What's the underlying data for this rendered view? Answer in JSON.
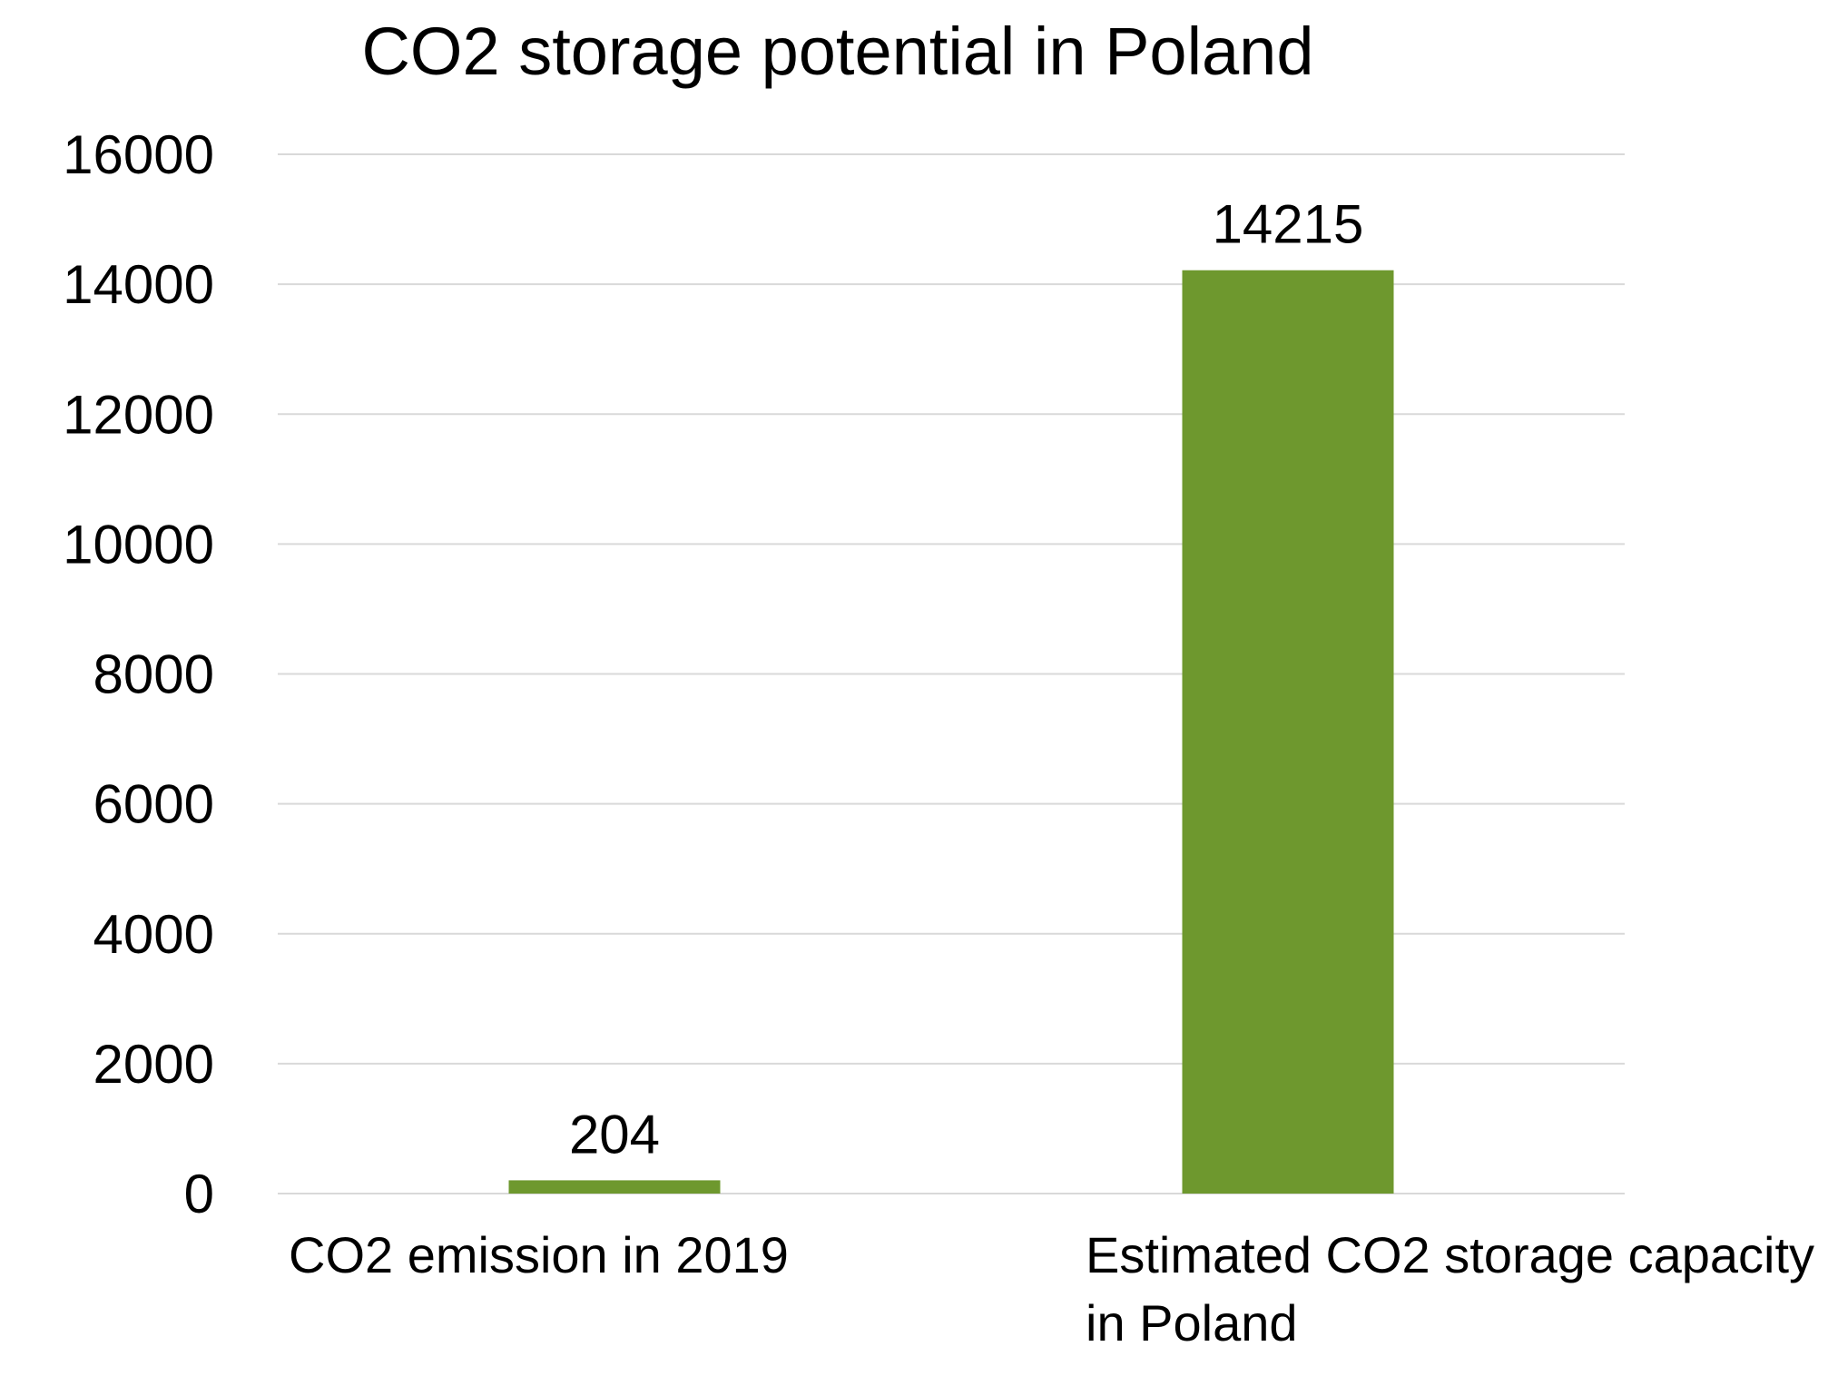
{
  "chart_data": {
    "type": "bar",
    "title": "CO2 storage potential in Poland",
    "xlabel": "",
    "ylabel": "",
    "categories": [
      [
        "CO2 emission in 2019"
      ],
      [
        "Estimated CO2 storage capacity",
        "in Poland"
      ]
    ],
    "values": [
      204,
      14215
    ],
    "data_labels": [
      "204",
      "14215"
    ],
    "ylim": [
      0,
      16000
    ],
    "yticks": [
      0,
      2000,
      4000,
      6000,
      8000,
      10000,
      12000,
      14000,
      16000
    ],
    "ytick_labels": [
      "0",
      "2000",
      "4000",
      "6000",
      "8000",
      "10000",
      "12000",
      "14000",
      "16000"
    ],
    "grid": true,
    "legend": "none",
    "colors": {
      "bar": "#6e982e",
      "gridline": "#d9d9d9",
      "text": "#000000"
    }
  }
}
